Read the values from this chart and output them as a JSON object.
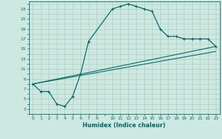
{
  "xlabel": "Humidex (Indice chaleur)",
  "bg_color": "#cce8e0",
  "grid_color": "#aaccbb",
  "line_color": "#006666",
  "xlim": [
    -0.5,
    23.5
  ],
  "ylim": [
    2,
    24.5
  ],
  "xticks": [
    0,
    1,
    2,
    3,
    4,
    5,
    6,
    7,
    8,
    10,
    11,
    12,
    13,
    14,
    15,
    16,
    17,
    18,
    19,
    20,
    21,
    22,
    23
  ],
  "yticks": [
    3,
    5,
    7,
    9,
    11,
    13,
    15,
    17,
    19,
    21,
    23
  ],
  "line1_x": [
    0,
    1,
    2,
    3,
    4,
    5,
    6,
    7,
    10,
    11,
    12,
    13,
    14,
    15,
    16,
    17,
    18,
    19,
    20,
    21,
    22,
    23
  ],
  "line1_y": [
    8,
    6.5,
    6.5,
    4,
    3.5,
    5.5,
    10,
    16.5,
    23,
    23.5,
    24,
    23.5,
    23,
    22.5,
    19,
    17.5,
    17.5,
    17,
    17,
    17,
    17,
    15.5
  ],
  "line2_x": [
    0,
    23
  ],
  "line2_y": [
    8,
    15.5
  ],
  "line3_x": [
    0,
    23
  ],
  "line3_y": [
    8,
    14.5
  ]
}
